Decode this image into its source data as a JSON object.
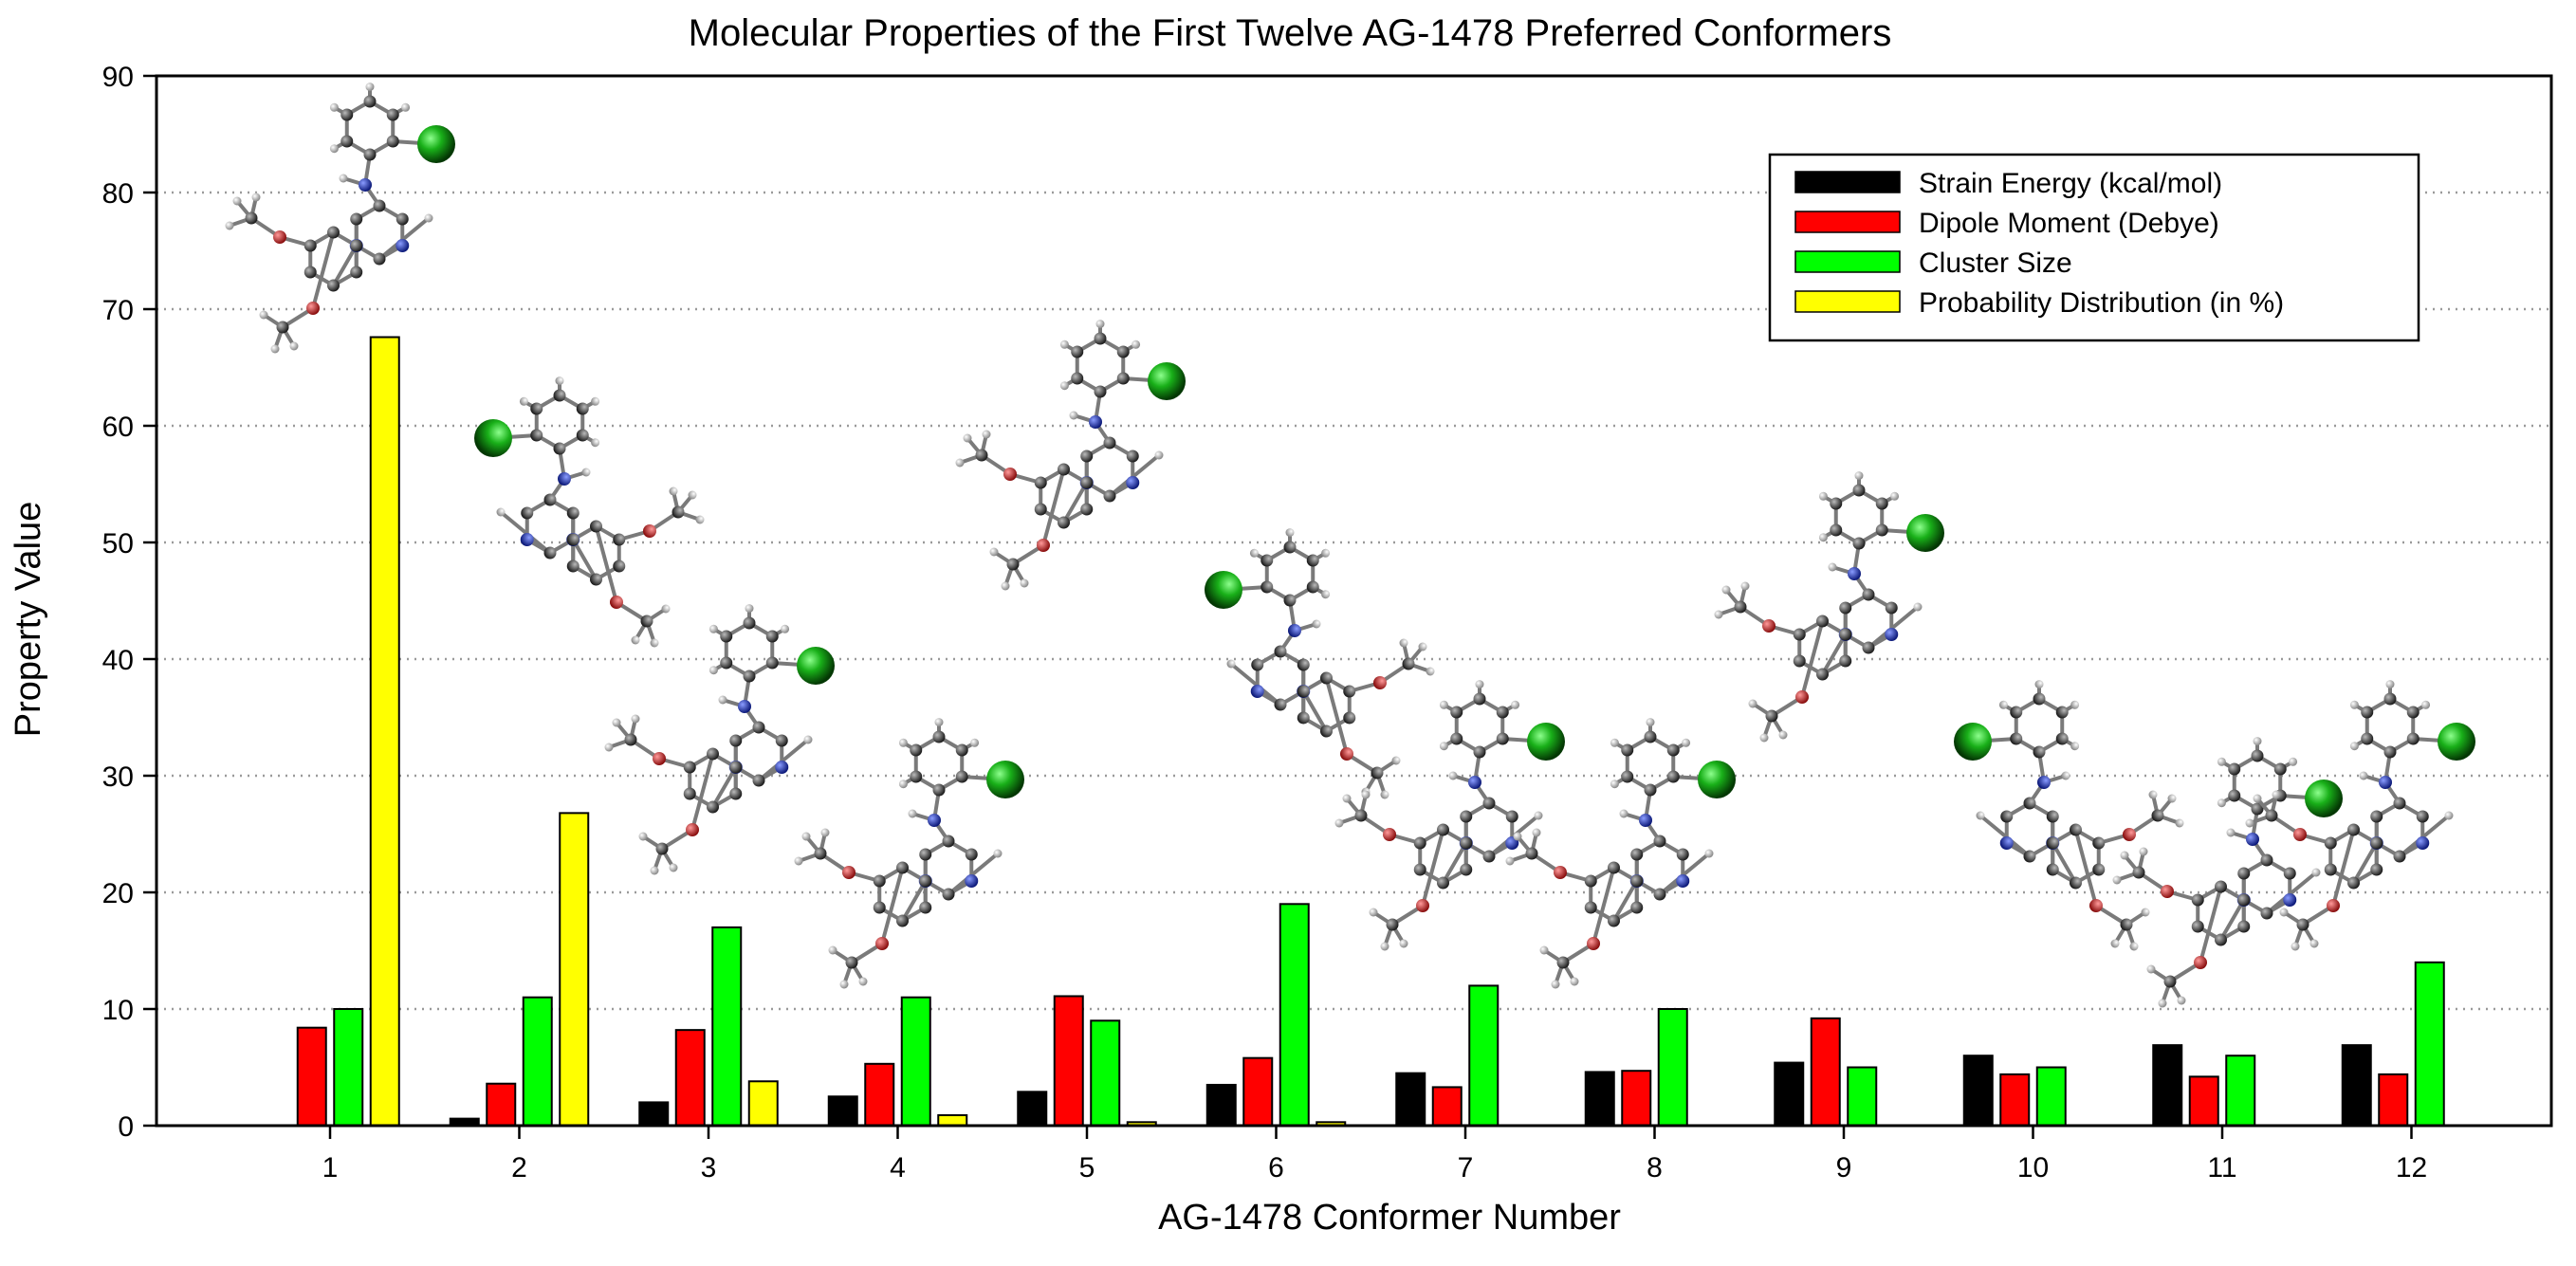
{
  "chart_data": {
    "type": "bar",
    "title": "Molecular Properties of the First Twelve AG-1478 Preferred Conformers",
    "xlabel": "AG-1478 Conformer Number",
    "ylabel": "Property Value",
    "ylim": [
      0,
      90
    ],
    "yticks": [
      0,
      10,
      20,
      30,
      40,
      50,
      60,
      70,
      80,
      90
    ],
    "grid": "horizontal-dotted",
    "legend_position": "top-right",
    "categories": [
      "1",
      "2",
      "3",
      "4",
      "5",
      "6",
      "7",
      "8",
      "9",
      "10",
      "11",
      "12"
    ],
    "series": [
      {
        "name": "Strain Energy (kcal/mol)",
        "color": "#000000",
        "values": [
          0,
          0.6,
          2.0,
          2.5,
          2.9,
          3.5,
          4.5,
          4.6,
          5.4,
          6.0,
          6.9,
          6.9
        ]
      },
      {
        "name": "Dipole Moment (Debye)",
        "color": "#ff0000",
        "values": [
          8.4,
          3.6,
          8.2,
          5.3,
          11.1,
          5.8,
          3.3,
          4.7,
          9.2,
          4.4,
          4.2,
          4.4
        ]
      },
      {
        "name": "Cluster Size",
        "color": "#00ff00",
        "values": [
          10,
          11,
          17,
          11,
          9,
          19,
          12,
          10,
          5,
          5,
          6,
          14
        ]
      },
      {
        "name": "Probability Distribution (in %)",
        "color": "#ffff00",
        "values": [
          67.6,
          26.8,
          3.8,
          0.9,
          0.3,
          0.3,
          0,
          0,
          0,
          0,
          0,
          0
        ]
      }
    ],
    "annotations": "ball-and-stick 3D structure image of each AG-1478 conformer drawn above its bar group"
  },
  "molecule_colors": {
    "carbon": "#444444",
    "hydrogen": "#cfcfcf",
    "nitrogen": "#2233aa",
    "oxygen": "#cc2222",
    "chlorine": "#11aa11"
  }
}
